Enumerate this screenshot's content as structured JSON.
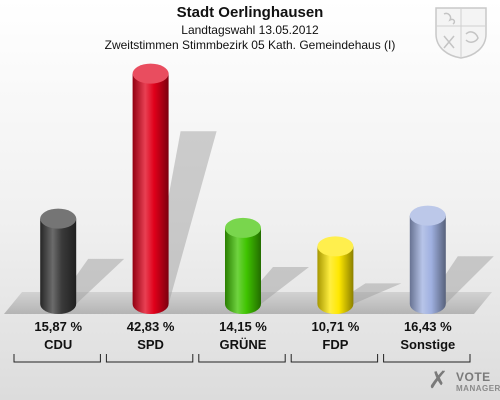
{
  "header": {
    "title": "Stadt Oerlinghausen",
    "subtitle": "Landtagswahl 13.05.2012",
    "subtitle2": "Zweitstimmen Stimmbezirk 05 Kath. Gemeindehaus (I)"
  },
  "brand": {
    "mark": "✗",
    "line1": "VOTE",
    "line2": "MANAGER"
  },
  "icons": {
    "crest": "coat-of-arms-icon"
  },
  "chart_data": {
    "type": "bar",
    "categories": [
      "CDU",
      "SPD",
      "GRÜNE",
      "FDP",
      "Sonstige"
    ],
    "values": [
      15.87,
      42.83,
      14.15,
      10.71,
      16.43
    ],
    "value_labels": [
      "15,87 %",
      "42,83 %",
      "14,15 %",
      "10,71 %",
      "16,43 %"
    ],
    "colors": [
      "#3a3a3a",
      "#e0001a",
      "#3fc400",
      "#ffe800",
      "#9fb0e0"
    ],
    "title": "Stadt Oerlinghausen",
    "xlabel": "",
    "ylabel": "",
    "ylim": [
      0,
      45
    ],
    "grid": false
  }
}
